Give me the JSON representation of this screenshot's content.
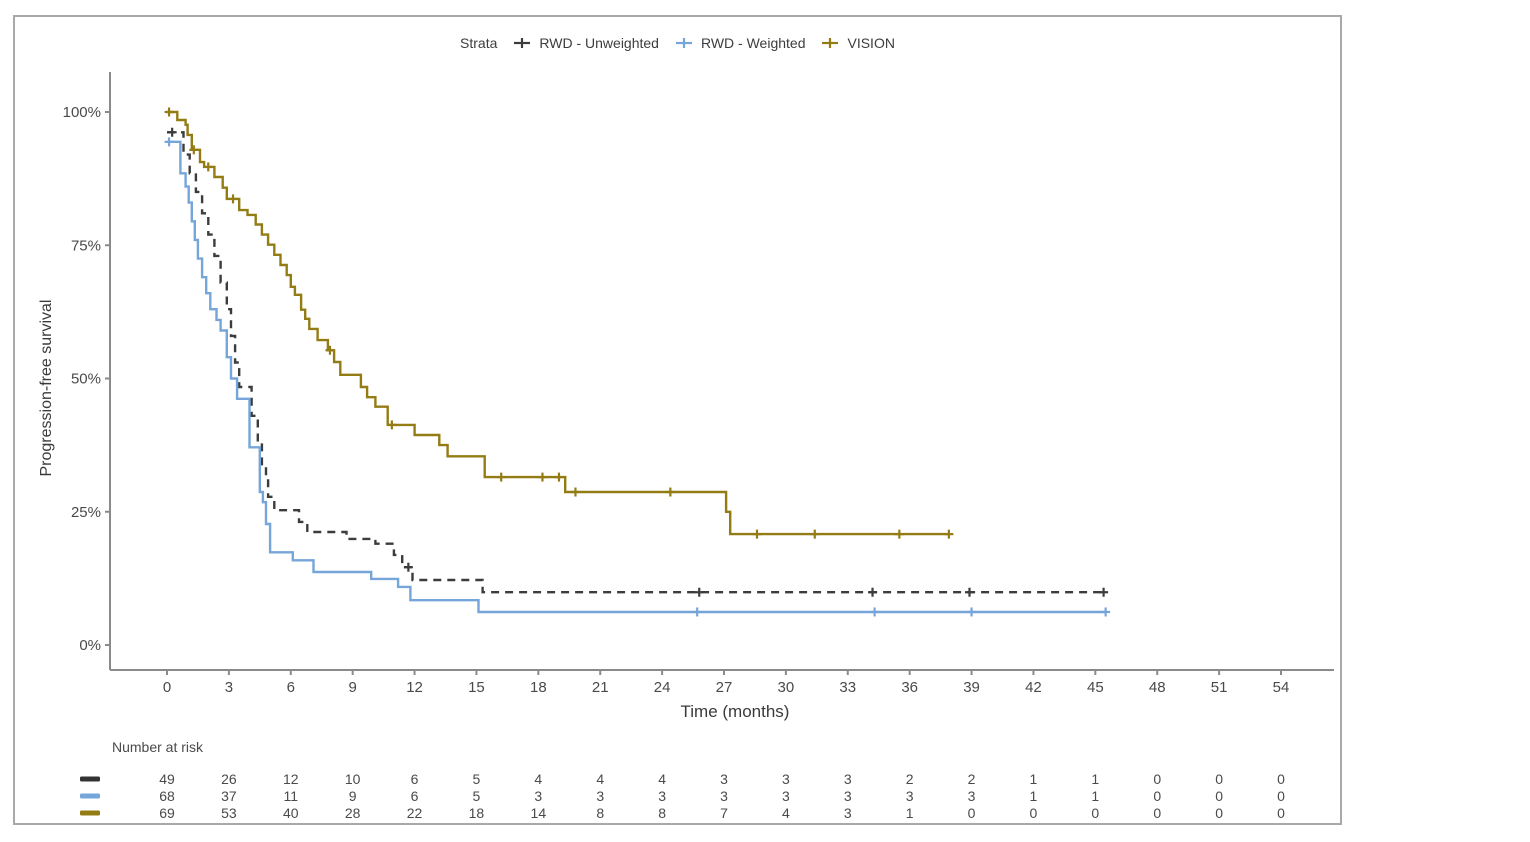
{
  "legend": {
    "title": "Strata",
    "items": [
      {
        "label": "RWD - Unweighted",
        "color": "#3c3c3c",
        "dash": "dashed"
      },
      {
        "label": "RWD - Weighted",
        "color": "#76a5da",
        "dash": "solid"
      },
      {
        "label": "VISION",
        "color": "#947c15",
        "dash": "solid"
      }
    ]
  },
  "axes": {
    "ylabel": "Progression-free survival",
    "xlabel": "Time (months)"
  },
  "risk_table_title": "Number at risk",
  "chart_data": {
    "type": "line",
    "subtype": "kaplan-meier-step",
    "title": "",
    "xlabel": "Time (months)",
    "ylabel": "Progression-free survival",
    "x_ticks": [
      0,
      3,
      6,
      9,
      12,
      15,
      18,
      21,
      24,
      27,
      30,
      33,
      36,
      39,
      42,
      45,
      48,
      51,
      54
    ],
    "y_ticks": [
      {
        "value": 100,
        "label": "100%"
      },
      {
        "value": 75,
        "label": "75%"
      },
      {
        "value": 50,
        "label": "50%"
      },
      {
        "value": 25,
        "label": "25%"
      },
      {
        "value": 0,
        "label": "0%"
      }
    ],
    "xlim": [
      0,
      54
    ],
    "ylim": [
      0,
      100
    ],
    "grid": false,
    "legend_position": "top",
    "series": [
      {
        "name": "RWD - Unweighted",
        "color": "#3c3c3c",
        "dash": "dashed",
        "points": [
          [
            0,
            96.2
          ],
          [
            0.8,
            92
          ],
          [
            1.1,
            88.5
          ],
          [
            1.4,
            85
          ],
          [
            1.7,
            81
          ],
          [
            2.0,
            77
          ],
          [
            2.3,
            73
          ],
          [
            2.6,
            68
          ],
          [
            2.9,
            63
          ],
          [
            3.1,
            58
          ],
          [
            3.3,
            53
          ],
          [
            3.5,
            48.4
          ],
          [
            4.1,
            43
          ],
          [
            4.4,
            38
          ],
          [
            4.6,
            33.5
          ],
          [
            4.8,
            31.1
          ],
          [
            4.9,
            27.8
          ],
          [
            5.2,
            25.3
          ],
          [
            6.4,
            23.1
          ],
          [
            6.8,
            21.2
          ],
          [
            8.7,
            19.9
          ],
          [
            10.1,
            19.0
          ],
          [
            11.0,
            16.9
          ],
          [
            11.4,
            14.6
          ],
          [
            11.9,
            12.2
          ],
          [
            15.3,
            9.9
          ],
          [
            45.4,
            9.9
          ]
        ],
        "censor_times": [
          0.25,
          11.7,
          25.8,
          34.2,
          38.9,
          45.4
        ]
      },
      {
        "name": "RWD - Weighted",
        "color": "#76a5da",
        "dash": "solid",
        "points": [
          [
            0,
            94.4
          ],
          [
            0.65,
            88.5
          ],
          [
            0.9,
            86
          ],
          [
            1.05,
            83
          ],
          [
            1.2,
            79.5
          ],
          [
            1.35,
            76
          ],
          [
            1.5,
            72.5
          ],
          [
            1.7,
            69
          ],
          [
            1.9,
            66
          ],
          [
            2.1,
            63
          ],
          [
            2.4,
            61
          ],
          [
            2.6,
            59
          ],
          [
            2.9,
            54
          ],
          [
            3.1,
            50
          ],
          [
            3.4,
            46.2
          ],
          [
            4.0,
            37.1
          ],
          [
            4.5,
            28.7
          ],
          [
            4.65,
            26.8
          ],
          [
            4.8,
            22.7
          ],
          [
            5.0,
            17.4
          ],
          [
            6.1,
            15.9
          ],
          [
            7.1,
            13.7
          ],
          [
            9.9,
            12.4
          ],
          [
            11.2,
            10.9
          ],
          [
            11.8,
            8.4
          ],
          [
            15.1,
            6.2
          ],
          [
            45.5,
            6.2
          ]
        ],
        "censor_times": [
          0.1,
          25.7,
          34.3,
          39.0,
          45.5
        ]
      },
      {
        "name": "VISION",
        "color": "#947c15",
        "dash": "solid",
        "points": [
          [
            0,
            100
          ],
          [
            0.5,
            98.5
          ],
          [
            0.9,
            97.6
          ],
          [
            1.0,
            95.7
          ],
          [
            1.2,
            92.9
          ],
          [
            1.6,
            90.6
          ],
          [
            1.8,
            89.7
          ],
          [
            2.3,
            87.8
          ],
          [
            2.7,
            85.8
          ],
          [
            2.9,
            83.7
          ],
          [
            3.5,
            81.6
          ],
          [
            3.9,
            80.7
          ],
          [
            4.3,
            78.9
          ],
          [
            4.6,
            77.0
          ],
          [
            4.9,
            75.1
          ],
          [
            5.2,
            73.2
          ],
          [
            5.5,
            71.3
          ],
          [
            5.8,
            69.4
          ],
          [
            6.0,
            67.2
          ],
          [
            6.2,
            65.7
          ],
          [
            6.5,
            62.9
          ],
          [
            6.7,
            61.2
          ],
          [
            6.9,
            59.3
          ],
          [
            7.3,
            57.2
          ],
          [
            7.8,
            55.3
          ],
          [
            8.1,
            53.1
          ],
          [
            8.4,
            50.7
          ],
          [
            9.4,
            48.4
          ],
          [
            9.7,
            46.5
          ],
          [
            10.1,
            44.7
          ],
          [
            10.7,
            41.3
          ],
          [
            12.0,
            39.4
          ],
          [
            13.2,
            37.5
          ],
          [
            13.6,
            35.4
          ],
          [
            15.4,
            31.5
          ],
          [
            19.3,
            28.7
          ],
          [
            27.1,
            25.0
          ],
          [
            27.3,
            20.8
          ],
          [
            37.9,
            20.8
          ]
        ],
        "censor_times": [
          0.1,
          1.3,
          2.0,
          3.2,
          7.9,
          10.9,
          16.2,
          18.2,
          19.0,
          19.8,
          24.4,
          28.6,
          31.4,
          35.5,
          37.9
        ]
      }
    ],
    "risk_table": {
      "title": "Number at risk",
      "times": [
        0,
        3,
        6,
        9,
        12,
        15,
        18,
        21,
        24,
        27,
        30,
        33,
        36,
        39,
        42,
        45,
        48,
        51,
        54
      ],
      "rows": [
        {
          "name": "RWD - Unweighted",
          "color": "#333333",
          "counts": [
            49,
            26,
            12,
            10,
            6,
            5,
            4,
            4,
            4,
            3,
            3,
            3,
            2,
            2,
            1,
            1,
            0,
            0,
            0
          ]
        },
        {
          "name": "RWD - Weighted",
          "color": "#76a5da",
          "counts": [
            68,
            37,
            11,
            9,
            6,
            5,
            3,
            3,
            3,
            3,
            3,
            3,
            3,
            3,
            1,
            1,
            0,
            0,
            0
          ]
        },
        {
          "name": "VISION",
          "color": "#947c15",
          "counts": [
            69,
            53,
            40,
            28,
            22,
            18,
            14,
            8,
            8,
            7,
            4,
            3,
            1,
            0,
            0,
            0,
            0,
            0,
            0
          ]
        }
      ]
    }
  }
}
